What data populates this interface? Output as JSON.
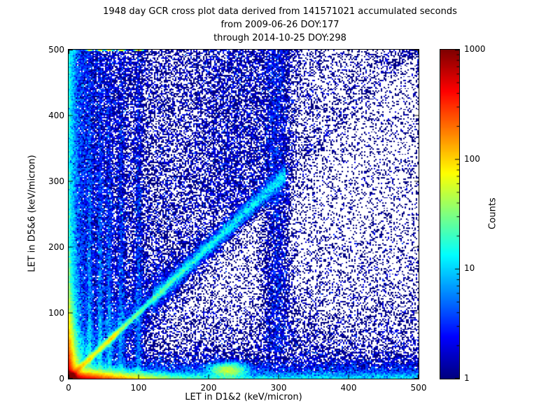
{
  "title": {
    "line1": "1948 day GCR cross plot data derived from 141571021 accumulated seconds",
    "line2": "from 2009-06-26 DOY:177",
    "line3": "through 2014-10-25 DOY:298"
  },
  "chart_data": {
    "type": "heatmap",
    "title": "1948 day GCR cross plot data derived from 141571021 accumulated seconds from 2009-06-26 DOY:177 through 2014-10-25 DOY:298",
    "xlabel": "LET in D1&2 (keV/micron)",
    "ylabel": "LET in D5&6 (keV/micron)",
    "xlim": [
      0,
      500
    ],
    "ylim": [
      0,
      500
    ],
    "grid": false,
    "colormap": "jet",
    "scale": "log",
    "bins": 250,
    "seed": 42,
    "xticks": [
      {
        "v": 0,
        "label": "0"
      },
      {
        "v": 100,
        "label": "100"
      },
      {
        "v": 200,
        "label": "200"
      },
      {
        "v": 300,
        "label": "300"
      },
      {
        "v": 400,
        "label": "400"
      },
      {
        "v": 500,
        "label": "500"
      }
    ],
    "yticks": [
      {
        "v": 0,
        "label": "0"
      },
      {
        "v": 100,
        "label": "100"
      },
      {
        "v": 200,
        "label": "200"
      },
      {
        "v": 300,
        "label": "300"
      },
      {
        "v": 400,
        "label": "400"
      },
      {
        "v": 500,
        "label": "500"
      }
    ],
    "colorbar": {
      "label": "Counts",
      "scale": "log",
      "min": 1,
      "max": 1000,
      "ticks": [
        {
          "v": 1000,
          "label": "1000"
        },
        {
          "v": 100,
          "label": "100"
        },
        {
          "v": 10,
          "label": "10"
        },
        {
          "v": 1,
          "label": "1"
        }
      ]
    },
    "description": "2D log-color density histogram of linear energy transfer (LET) coincidences: intense saturated hot spot at the origin, hot bands hugging both axes, a correlated y=x diagonal ridge extending to ~300 keV/micron, several vertical ion-species streaks near x=30-100 and x=300, a cyan blob near (228,13), and sparse dark-blue single-count speckle across the plane.",
    "features": [
      {
        "name": "origin-hot-core",
        "n": 90000,
        "x": {
          "d": "gauss",
          "m": 2.5,
          "s": 3.5
        },
        "y": {
          "d": "gauss",
          "m": 2.5,
          "s": 3.5
        }
      },
      {
        "name": "bottom-axis-flame",
        "n": 50000,
        "x": {
          "d": "exp",
          "m": 40
        },
        "y": {
          "d": "exp",
          "m": 5
        }
      },
      {
        "name": "left-axis-flame",
        "n": 33000,
        "x": {
          "d": "exp",
          "m": 5
        },
        "y": {
          "d": "exp",
          "m": 40
        }
      },
      {
        "name": "diagonal-low",
        "n": 15000,
        "x": {
          "d": "exp",
          "m": 60
        },
        "y": {
          "d": "eqx",
          "s": 3
        }
      },
      {
        "name": "diagonal-bright-knot",
        "n": 1500,
        "x": {
          "d": "gauss",
          "m": 62,
          "s": 5
        },
        "y": {
          "d": "eqx",
          "s": 3
        }
      },
      {
        "name": "diagonal-mid",
        "n": 9000,
        "x": {
          "d": "unif",
          "a": 120,
          "b": 310
        },
        "y": {
          "d": "eqx",
          "s": 8
        }
      },
      {
        "name": "diagonal-halo",
        "n": 8000,
        "x": {
          "d": "exp",
          "m": 90
        },
        "y": {
          "d": "eqx",
          "s": 25
        }
      },
      {
        "name": "bottom-band",
        "n": 12000,
        "x": {
          "d": "unif",
          "a": 0,
          "b": 500
        },
        "y": {
          "d": "exp",
          "m": 9
        }
      },
      {
        "name": "left-band",
        "n": 12000,
        "x": {
          "d": "exp",
          "m": 7
        },
        "y": {
          "d": "unif",
          "a": 0,
          "b": 500
        }
      },
      {
        "name": "bottom-blob-220",
        "n": 6000,
        "x": {
          "d": "gauss",
          "m": 228,
          "s": 14
        },
        "y": {
          "d": "gauss",
          "m": 13,
          "s": 6
        }
      },
      {
        "name": "vertical-streak-30",
        "n": 2600,
        "x": {
          "d": "gauss",
          "m": 30,
          "s": 2
        },
        "y": {
          "d": "exp",
          "m": 200
        }
      },
      {
        "name": "vertical-streak-45",
        "n": 2400,
        "x": {
          "d": "gauss",
          "m": 45,
          "s": 2
        },
        "y": {
          "d": "exp",
          "m": 200
        }
      },
      {
        "name": "vertical-streak-58",
        "n": 2400,
        "x": {
          "d": "gauss",
          "m": 58,
          "s": 2.5
        },
        "y": {
          "d": "exp",
          "m": 220
        }
      },
      {
        "name": "vertical-streak-75",
        "n": 2200,
        "x": {
          "d": "gauss",
          "m": 75,
          "s": 2.5
        },
        "y": {
          "d": "exp",
          "m": 220
        }
      },
      {
        "name": "vertical-streak-100",
        "n": 2400,
        "x": {
          "d": "gauss",
          "m": 100,
          "s": 3
        },
        "y": {
          "d": "exp",
          "m": 250
        }
      },
      {
        "name": "vertical-band-300",
        "n": 5200,
        "x": {
          "d": "gauss",
          "m": 298,
          "s": 11
        },
        "y": {
          "d": "unif",
          "a": 40,
          "b": 500
        }
      },
      {
        "name": "upper-mid-cloud",
        "n": 4200,
        "x": {
          "d": "gauss",
          "m": 240,
          "s": 40
        },
        "y": {
          "d": "unif",
          "a": 260,
          "b": 500
        }
      },
      {
        "name": "above-diagonal-fan",
        "n": 16000,
        "x": {
          "d": "exp",
          "m": 120
        },
        "y": {
          "d": "above",
          "max": 500
        }
      },
      {
        "name": "low-haze",
        "n": 9000,
        "x": {
          "d": "unif",
          "a": 0,
          "b": 500
        },
        "y": {
          "d": "exp",
          "m": 70
        }
      },
      {
        "name": "background-speckle",
        "n": 14000,
        "x": {
          "d": "unif",
          "a": 0,
          "b": 500
        },
        "y": {
          "d": "unif",
          "a": 0,
          "b": 500
        }
      },
      {
        "name": "left-wide-scatter",
        "n": 9000,
        "x": {
          "d": "exp",
          "m": 35
        },
        "y": {
          "d": "unif",
          "a": 0,
          "b": 500
        }
      }
    ]
  }
}
